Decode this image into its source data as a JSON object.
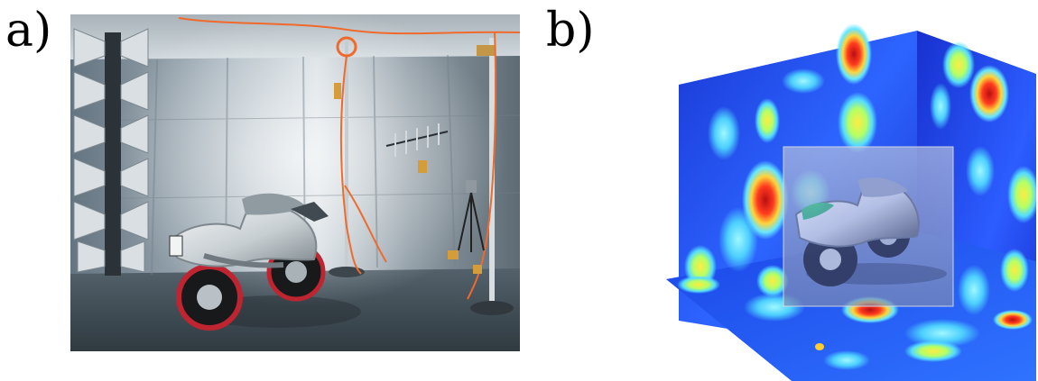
{
  "figure": {
    "panel_a": {
      "label": "a)",
      "image_kind": "photograph",
      "plate_text": "",
      "colors": {
        "wall": "#8f9aa3",
        "floor": "#4a565e",
        "ceiling": "#c9d2d8",
        "cable": "#f06a2c",
        "motorbike": "#d9dde0"
      }
    },
    "panel_b": {
      "label": "b)",
      "image_kind": "3d-heatmap-slices",
      "colors": {
        "low": "#1f3dd8",
        "mid": "#34c8ff",
        "high": "#ffd23d",
        "peak": "#b01414"
      }
    }
  }
}
